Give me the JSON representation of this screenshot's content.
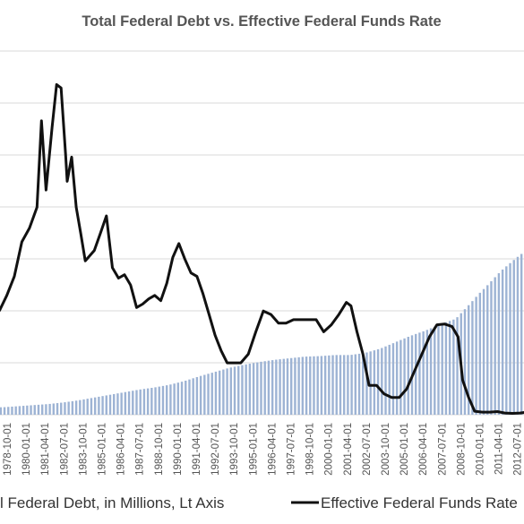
{
  "chart_data": {
    "type": "bar+line",
    "title": "Total Federal Debt vs. Effective Federal Funds Rate",
    "x_tick_labels": [
      "1978-10-01",
      "1980-01-01",
      "1981-04-01",
      "1982-07-01",
      "1983-10-01",
      "1985-01-01",
      "1986-04-01",
      "1987-07-01",
      "1988-10-01",
      "1990-01-01",
      "1991-04-01",
      "1992-07-01",
      "1993-10-01",
      "1995-01-01",
      "1996-04-01",
      "1997-07-01",
      "1998-10-01",
      "2000-01-01",
      "2001-04-01",
      "2002-07-01",
      "2003-10-01",
      "2005-01-01",
      "2006-04-01",
      "2007-07-01",
      "2008-10-01",
      "2010-01-01",
      "2011-04-01",
      "2012-07-01"
    ],
    "grid": true,
    "legend_position": "bottom",
    "series": [
      {
        "name": "l Federal Debt, in Millions, Lt Axis",
        "kind": "bar",
        "color": "#9db3d4",
        "x": [
          1977.75,
          1978.75,
          1979.75,
          1980.75,
          1981.75,
          1982.75,
          1983.75,
          1984.75,
          1985.75,
          1986.75,
          1987.75,
          1988.75,
          1989.75,
          1990.75,
          1991.75,
          1992.75,
          1993.75,
          1994.75,
          1995.75,
          1996.75,
          1997.75,
          1998.75,
          1999.75,
          2000.75,
          2001.75,
          2002.75,
          2003.75,
          2004.75,
          2005.75,
          2006.75,
          2007.75,
          2008.75,
          2009.25,
          2009.75,
          2010.75,
          2011.75,
          2012.75,
          2013.25
        ],
        "values": [
          0.7,
          0.8,
          0.9,
          1.0,
          1.15,
          1.35,
          1.6,
          1.85,
          2.1,
          2.35,
          2.55,
          2.8,
          3.15,
          3.6,
          4.0,
          4.4,
          4.7,
          4.95,
          5.15,
          5.3,
          5.45,
          5.5,
          5.6,
          5.6,
          5.8,
          6.2,
          6.8,
          7.4,
          7.9,
          8.5,
          9.0,
          10.5,
          11.3,
          12.0,
          13.5,
          14.7,
          15.8,
          16.4
        ]
      },
      {
        "name": "Effective Federal Funds Rate",
        "kind": "line",
        "color": "#111111",
        "x": [
          1977.5,
          1978.0,
          1978.5,
          1979.0,
          1979.5,
          1980.0,
          1980.3,
          1980.6,
          1981.0,
          1981.3,
          1981.6,
          1981.9,
          1982.0,
          1982.3,
          1982.6,
          1982.9,
          1983.2,
          1983.5,
          1983.8,
          1984.2,
          1984.6,
          1985.0,
          1985.4,
          1985.8,
          1986.2,
          1986.6,
          1987.0,
          1987.4,
          1987.8,
          1988.2,
          1988.6,
          1989.0,
          1989.4,
          1989.8,
          1990.2,
          1990.6,
          1991.0,
          1991.4,
          1991.8,
          1992.2,
          1992.6,
          1993.0,
          1993.5,
          1994.0,
          1994.5,
          1995.0,
          1995.5,
          1996.0,
          1996.5,
          1997.0,
          1997.5,
          1998.0,
          1998.5,
          1999.0,
          1999.5,
          2000.0,
          2000.5,
          2000.8,
          2001.2,
          2001.6,
          2002.0,
          2002.5,
          2003.0,
          2003.5,
          2004.0,
          2004.5,
          2005.0,
          2005.5,
          2006.0,
          2006.5,
          2007.0,
          2007.5,
          2007.9,
          2008.2,
          2008.6,
          2009.0,
          2009.5,
          2010.0,
          2010.5,
          2011.0,
          2011.5,
          2012.0,
          2012.5,
          2013.0,
          2013.5
        ],
        "values": [
          6.0,
          6.9,
          8.0,
          10.0,
          10.8,
          12.0,
          17.0,
          13.0,
          16.6,
          19.1,
          18.9,
          15.0,
          13.5,
          14.9,
          12.0,
          10.5,
          8.9,
          9.2,
          9.5,
          10.5,
          11.5,
          8.5,
          7.9,
          8.1,
          7.5,
          6.2,
          6.4,
          6.7,
          6.9,
          6.6,
          7.6,
          9.1,
          9.9,
          9.0,
          8.2,
          8.0,
          7.0,
          5.8,
          4.6,
          3.7,
          3.0,
          3.0,
          3.0,
          3.5,
          4.8,
          6.0,
          5.8,
          5.3,
          5.3,
          5.5,
          5.5,
          5.5,
          5.5,
          4.8,
          5.2,
          5.8,
          6.5,
          6.3,
          4.8,
          3.5,
          1.7,
          1.7,
          1.2,
          1.0,
          1.0,
          1.5,
          2.5,
          3.5,
          4.5,
          5.2,
          5.25,
          5.1,
          4.5,
          2.0,
          1.0,
          0.2,
          0.15,
          0.15,
          0.18,
          0.1,
          0.08,
          0.1,
          0.15,
          0.12,
          0.1
        ]
      }
    ]
  }
}
